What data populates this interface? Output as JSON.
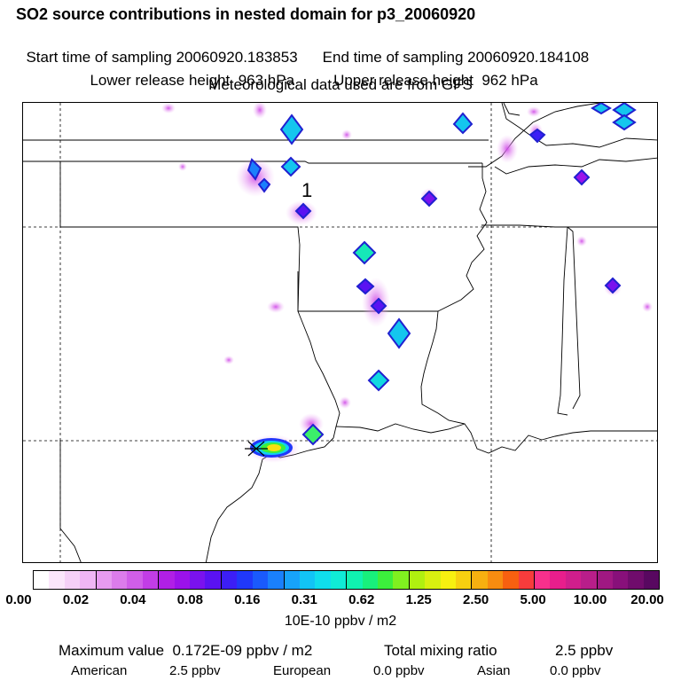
{
  "header": {
    "title": "SO2 source contributions in nested domain for p3_20060920",
    "start_label": "Start time of sampling 20060920.183853",
    "end_label": "End time of sampling 20060920.184108",
    "lower_label": "Lower release height  963 hPa",
    "upper_label": "Upper release height  962 hPa",
    "met_label": "Meteorological data used are from GFS"
  },
  "map": {
    "marker_label": "1"
  },
  "colorbar": {
    "colors": [
      "#ffffff",
      "#fbe6fb",
      "#f5d0f7",
      "#efb6f4",
      "#e79bf0",
      "#dc7ceb",
      "#d05ee8",
      "#c23de6",
      "#b01fe6",
      "#9b12ea",
      "#7a12ee",
      "#5a12f2",
      "#3c1ef6",
      "#2038fa",
      "#1a5afc",
      "#1a80fc",
      "#17a3fa",
      "#12c4f5",
      "#10deec",
      "#10ecd6",
      "#10f2b0",
      "#18f07c",
      "#3cef3c",
      "#80f020",
      "#b0f010",
      "#d8f010",
      "#f7f010",
      "#f7d010",
      "#f7b010",
      "#f78c10",
      "#f76010",
      "#f73c3c",
      "#f7308c",
      "#e81e8c",
      "#d01e8c",
      "#b81e8a",
      "#a01882",
      "#88107a",
      "#700c6c",
      "#580860"
    ],
    "tick_labels": [
      "0.00",
      "0.02",
      "0.04",
      "0.08",
      "0.16",
      "0.31",
      "0.62",
      "1.25",
      "2.50",
      "5.00",
      "10.00",
      "20.00"
    ],
    "units": "10E-10 ppbv / m2"
  },
  "stats": {
    "max_label": "Maximum value  0.172E-09 ppbv / m2",
    "total_label": "Total mixing ratio",
    "total_value": "2.5 ppbv",
    "american_label": "American",
    "american_value": "2.5 ppbv",
    "european_label": "European",
    "european_value": "0.0 ppbv",
    "asian_label": "Asian",
    "asian_value": "0.0 ppbv"
  }
}
